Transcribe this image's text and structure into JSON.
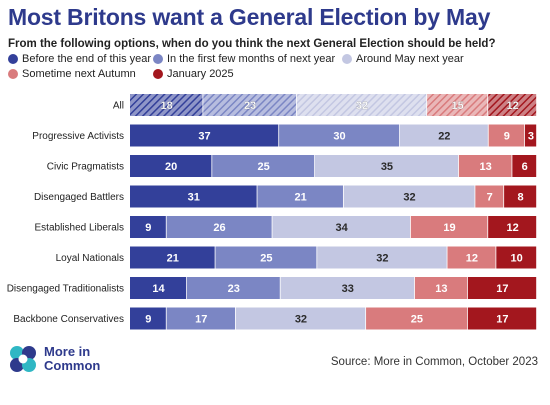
{
  "colors": {
    "title": "#2e3a8c",
    "series": [
      "#33409a",
      "#7b86c4",
      "#c3c7e2",
      "#d97b7d",
      "#a3171e"
    ]
  },
  "chart_data": {
    "type": "bar",
    "orientation": "horizontal",
    "stacked": true,
    "title": "Most Britons want a General Election by May",
    "subtitle": "From the following options, when do you think the next General Election should be held?",
    "legend_position": "top",
    "categories": [
      "All",
      "Progressive Activists",
      "Civic Pragmatists",
      "Disengaged Battlers",
      "Established Liberals",
      "Loyal Nationals",
      "Disengaged Traditionalists",
      "Backbone Conservatives"
    ],
    "hatched_categories": [
      "All"
    ],
    "series": [
      {
        "name": "Before the end of this year",
        "values": [
          18,
          37,
          20,
          31,
          9,
          21,
          14,
          9
        ]
      },
      {
        "name": "In the first few months of next year",
        "values": [
          23,
          30,
          25,
          21,
          26,
          25,
          23,
          17
        ]
      },
      {
        "name": "Around May next year",
        "values": [
          32,
          22,
          35,
          32,
          34,
          32,
          33,
          32
        ]
      },
      {
        "name": "Sometime next Autumn",
        "values": [
          15,
          9,
          13,
          7,
          19,
          12,
          13,
          25
        ]
      },
      {
        "name": "January 2025",
        "values": [
          12,
          3,
          6,
          8,
          12,
          10,
          17,
          17
        ]
      }
    ]
  },
  "footer": {
    "logo_line1": "More in",
    "logo_line2": "Common",
    "source": "Source: More in Common, October 2023"
  }
}
